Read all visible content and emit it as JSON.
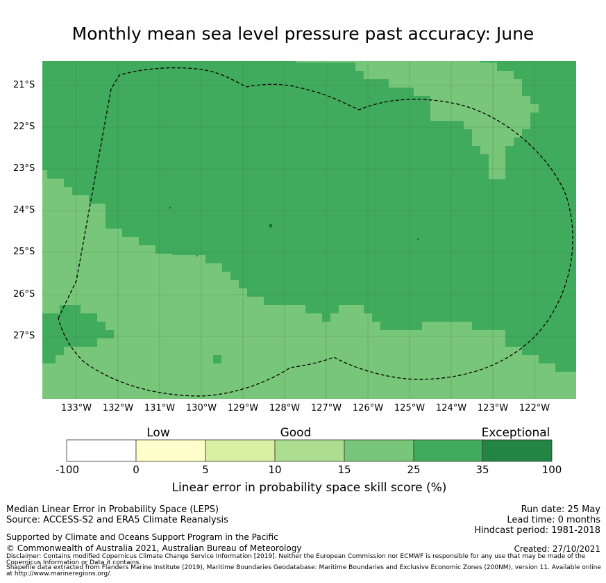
{
  "title": "Monthly mean sea level pressure past accuracy: June",
  "map": {
    "lat_labels": [
      "21°S",
      "22°S",
      "23°S",
      "24°S",
      "25°S",
      "26°S",
      "27°S"
    ],
    "lon_labels": [
      "133°W",
      "132°W",
      "131°W",
      "130°W",
      "129°W",
      "128°W",
      "127°W",
      "126°W",
      "125°W",
      "124°W",
      "123°W",
      "122°W"
    ],
    "colors": {
      "good_light": "#78c679",
      "very_good": "#41ab5d",
      "exceptional": "#238443"
    },
    "boundary_style": "dashed black line (EEZ boundary)"
  },
  "colorbar": {
    "words": [
      "Low",
      "Good",
      "Exceptional"
    ],
    "ticks": [
      "-100",
      "0",
      "5",
      "10",
      "15",
      "25",
      "35",
      "100"
    ],
    "colors": [
      "#ffffff",
      "#ffffcc",
      "#d9f0a3",
      "#addd8e",
      "#78c679",
      "#41ab5d",
      "#238443"
    ],
    "label": "Linear error in probability space skill score (%)"
  },
  "footer": {
    "line1": "Median Linear Error in Probability Space (LEPS)",
    "line2": "Source: ACCESS-S2 and ERA5 Climate Reanalysis",
    "line3": "Supported by Climate and Oceans Support Program in the Pacific",
    "line4": "© Commonwealth of Australia 2021, Australian Bureau of Meteorology",
    "run_date": "Run date: 25 May",
    "lead_time": "Lead time: 0 months",
    "hindcast": "Hindcast period: 1981-2018",
    "created": "Created: 27/10/2021",
    "disclaimer": "Disclaimer: Contains modified Copernicus Climate Change Service Information [2019]. Neither the European Commission nor ECMWF is responsible for any use that may be made of the Copernicus Information or Data it contains.",
    "shapefile": "Shapefile data extracted from Flanders Marine Institute (2019), Maritime Boundaries Geodatabase: Maritime Boundaries and Exclusive Economic Zones (200NM), version 11. Available online at http://www.marineregions.org/."
  }
}
